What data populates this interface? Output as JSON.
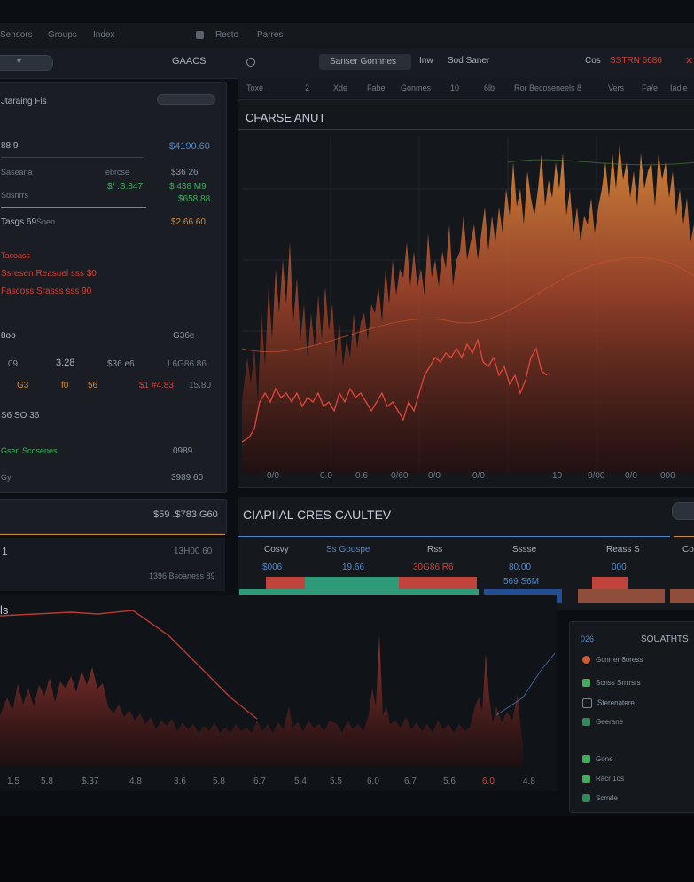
{
  "menu": [
    "Sensors",
    "Groups",
    "Index",
    "Resto",
    "Parres"
  ],
  "menu_icon": "square-icon",
  "left_header": {
    "dropdown_glyph": "▼",
    "title": "GAACS"
  },
  "toolbar": {
    "search_icon": "search-icon",
    "segment_label": "Sanser Gonnnes",
    "tab1": "Inw",
    "tab2": "Sod Saner",
    "right_label": "Cos",
    "right_value": "SSTRN 6686",
    "close_glyph": "✕"
  },
  "subbar_labels": [
    "Toxe",
    "2",
    "Xde",
    "Fabe",
    "Gonmes",
    "10",
    "6lb",
    "Ror Becoseneels 8",
    "Vers",
    "Fa/e",
    "Iadle"
  ],
  "left_panel": {
    "row1_label": "Jtaraing Fis",
    "row2_label": "88 9",
    "row2_value": "$4190.60",
    "row3_label": "Saseana",
    "row3_mid": "ebrcse",
    "row3_value": "$36 26",
    "row4_mid": "$/ .S.847",
    "row4_value": "$ 438 M9",
    "row5_label": "Sdsnrrs",
    "row5_value": "$658 88",
    "row6_label": "Tasgs 69",
    "row6_mid": "Soen",
    "row6_value": "$2.66 60",
    "red1": "Tacoass",
    "red2": "Ssresen Reasuel sss $0",
    "red3": "Fascoss Srasss sss 90",
    "sec_label": "8oo",
    "sec_value": "G36e",
    "nums_row1": [
      "09",
      "3.28",
      "$36 e6",
      "L6G86 86"
    ],
    "nums_row2": [
      "G3",
      "f0",
      "56",
      "$1 #4.83",
      "15.80"
    ],
    "row7_label": "S6 SO 36",
    "green_row": "Gsen Scosenes",
    "green_value": "0989",
    "row8_label": "Gy",
    "row8_value": "3989 60"
  },
  "left_lower": {
    "value": "$59 .$783 G60",
    "num": "1",
    "side_value": "13H00 60",
    "sub_value": "1396 Bsoaness 89"
  },
  "main_chart": {
    "title": "CFARSE ANUT",
    "x_labels": [
      "0/0",
      "0.0",
      "0.6",
      "0/60",
      "0/0",
      "0/0",
      "10",
      "0/00",
      "0/0",
      "000"
    ]
  },
  "capital": {
    "title": "CIAPIIAL CRES CAULTEV",
    "headers": [
      "Cosvy",
      "Ss Gouspe",
      "Rss",
      "Sssse",
      "Reass S",
      "Co"
    ],
    "values": [
      "$006",
      "19.66",
      "30G86 R6",
      "80.00",
      "000"
    ],
    "sub_value": "569 S6M"
  },
  "bottom_chart": {
    "label": "ls",
    "x_labels": [
      "1.5",
      "5.8",
      "$.37",
      "4.8",
      "3.6",
      "5.8",
      "6.7",
      "5.4",
      "5.5",
      "6.0",
      "6.7",
      "5.6",
      "6.0",
      "4.8"
    ]
  },
  "stats": {
    "left_label": "026",
    "title": "SOUATHTS",
    "items": [
      "Gcnrrer 8oress",
      "Scnss Srrrrsrs",
      "Sterenatere",
      "Geerane",
      "Gone",
      "Racr 1os",
      "Scrrsle"
    ],
    "icons": [
      "circle-icon",
      "spark-icon",
      "chart-icon",
      "node-icon",
      "arrow-icon",
      "star-icon",
      "graph-icon"
    ]
  },
  "colors": {
    "accent_red": "#c8443a",
    "accent_green": "#3fae5b",
    "accent_orange": "#c98a3c",
    "accent_blue": "#4f86c9",
    "panel_bg": "#1a1e24"
  }
}
